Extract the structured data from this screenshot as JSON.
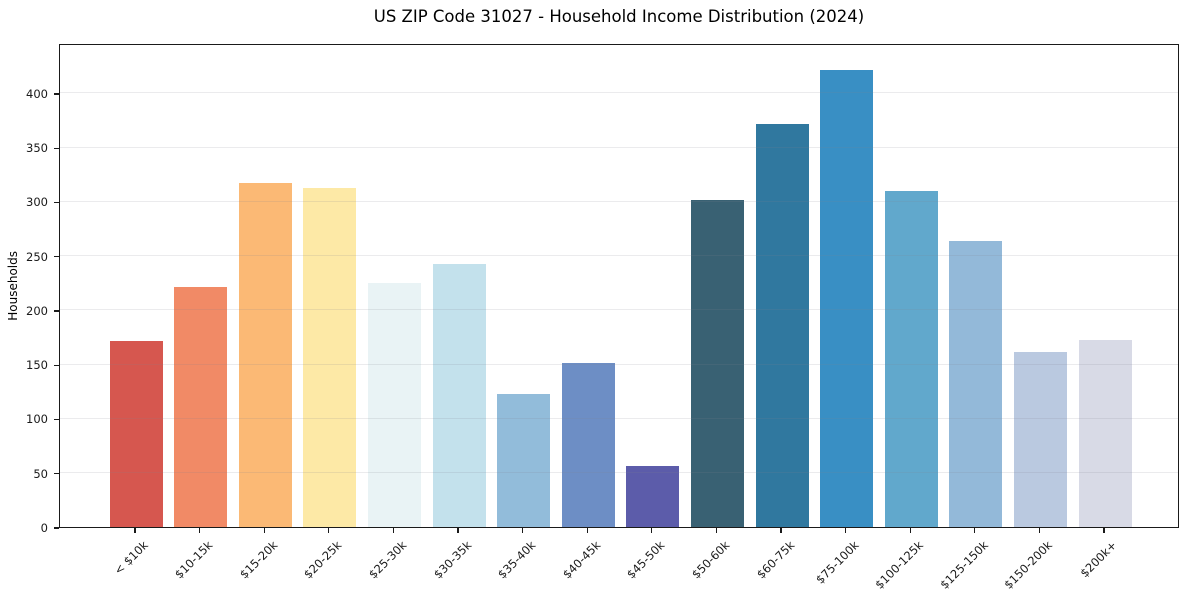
{
  "chart_data": {
    "type": "bar",
    "title": "US ZIP Code 31027 - Household Income Distribution (2024)",
    "xlabel": "",
    "ylabel": "Households",
    "categories": [
      "< $10k",
      "$10-15k",
      "$15-20k",
      "$20-25k",
      "$25-30k",
      "$30-35k",
      "$35-40k",
      "$40-45k",
      "$45-50k",
      "$50-60k",
      "$60-75k",
      "$75-100k",
      "$100-125k",
      "$125-150k",
      "$150-200k",
      "$200k+"
    ],
    "values": [
      171,
      221,
      317,
      312,
      225,
      242,
      123,
      151,
      56,
      301,
      371,
      421,
      310,
      264,
      161,
      172
    ],
    "bar_colors": [
      "#d6574f",
      "#f18a66",
      "#fbb975",
      "#fde9a6",
      "#e9f3f5",
      "#c3e1ec",
      "#92bcda",
      "#6d8ec5",
      "#5c5caa",
      "#396173",
      "#30789f",
      "#398fc4",
      "#61a8cc",
      "#93b9d9",
      "#bac9e0",
      "#d8dae6"
    ],
    "yticks": [
      0,
      50,
      100,
      150,
      200,
      250,
      300,
      350,
      400
    ],
    "ylim": [
      0,
      446
    ],
    "grid": "horizontal",
    "legend": "none",
    "colors": {
      "background": "#ffffff",
      "spine": "#1a1a1a",
      "grid_line": "#e8e8ec",
      "text": "#1a1a1a"
    }
  }
}
